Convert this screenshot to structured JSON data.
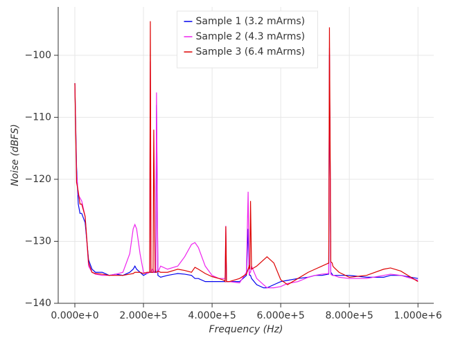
{
  "chart_data": {
    "type": "line",
    "x_label": "Frequency (Hz)",
    "y_label": "Noise (dBFS)",
    "xlim": [
      -48500,
      1046000
    ],
    "ylim": [
      -140,
      -92.2
    ],
    "xticks": [
      {
        "value": 0,
        "label": "0.000e+0"
      },
      {
        "value": 200000,
        "label": "2.000e+5"
      },
      {
        "value": 400000,
        "label": "4.000e+5"
      },
      {
        "value": 600000,
        "label": "6.000e+5"
      },
      {
        "value": 800000,
        "label": "8.000e+5"
      },
      {
        "value": 1000000,
        "label": "1.000e+6"
      }
    ],
    "yticks": [
      {
        "value": -140,
        "label": "−140"
      },
      {
        "value": -130,
        "label": "−130"
      },
      {
        "value": -120,
        "label": "−120"
      },
      {
        "value": -110,
        "label": "−110"
      },
      {
        "value": -100,
        "label": "−100"
      }
    ],
    "grid": true,
    "legend": "upper center",
    "x": [
      0,
      5000,
      10000,
      15000,
      20000,
      30000,
      40000,
      50000,
      60000,
      80000,
      100000,
      120000,
      140000,
      160000,
      170000,
      175000,
      180000,
      190000,
      200000,
      210000,
      218000,
      220000,
      222000,
      226000,
      228000,
      230000,
      234000,
      236000,
      238000,
      242000,
      250000,
      270000,
      300000,
      320000,
      340000,
      350000,
      360000,
      380000,
      400000,
      420000,
      435000,
      438000,
      440000,
      442000,
      450000,
      480000,
      500000,
      505000,
      508000,
      510000,
      512000,
      515000,
      530000,
      550000,
      560000,
      580000,
      600000,
      620000,
      650000,
      680000,
      700000,
      720000,
      740000,
      742000,
      746000,
      750000,
      752000,
      755000,
      770000,
      800000,
      850000,
      900000,
      920000,
      950000,
      1000000
    ],
    "series": [
      {
        "name": "Sample 1 (3.2 mArms)",
        "color": "#0000ee",
        "values": [
          -104.5,
          -118,
          -124,
          -125.5,
          -125.5,
          -127,
          -133,
          -134.5,
          -135,
          -135,
          -135.5,
          -135.3,
          -135.5,
          -135,
          -134.5,
          -134,
          -134.5,
          -135,
          -135.5,
          -135.2,
          -135,
          -135,
          -135,
          -135,
          -135,
          -135,
          -135,
          -135,
          -108,
          -135.5,
          -135.8,
          -135.5,
          -135.2,
          -135.3,
          -135.5,
          -136,
          -136,
          -136.5,
          -136.5,
          -136.5,
          -136.5,
          -136.5,
          -130,
          -136.5,
          -136.5,
          -136.5,
          -135.5,
          -128,
          -135,
          -135.5,
          -135.5,
          -136,
          -137,
          -137.5,
          -137.5,
          -137,
          -136.5,
          -136.3,
          -136,
          -135.8,
          -135.5,
          -135.5,
          -135.3,
          -100,
          -135,
          -135.3,
          -135.5,
          -135.5,
          -135.5,
          -135.5,
          -135.8,
          -135.8,
          -135.5,
          -135.5,
          -136
        ]
      },
      {
        "name": "Sample 2 (4.3 mArms)",
        "color": "#ee22ee",
        "values": [
          -104.5,
          -119,
          -122.5,
          -123,
          -123.5,
          -126,
          -134,
          -135,
          -135.3,
          -135.5,
          -135.5,
          -135.3,
          -135,
          -132,
          -128,
          -127.3,
          -128,
          -132,
          -135,
          -135.2,
          -135,
          -101,
          -135,
          -134.5,
          -134.5,
          -135,
          -134.8,
          -134.5,
          -106,
          -135,
          -134,
          -134.5,
          -134,
          -132.5,
          -130.5,
          -130.2,
          -131,
          -134,
          -135.5,
          -136,
          -136,
          -136,
          -127.5,
          -136.5,
          -136.5,
          -136.7,
          -135,
          -122,
          -135.5,
          -135,
          -135,
          -134,
          -136,
          -137,
          -137.5,
          -137.5,
          -137.3,
          -136.8,
          -136.5,
          -135.8,
          -135.5,
          -135.3,
          -135.2,
          -98.8,
          -135.3,
          -135.5,
          -135.5,
          -135.5,
          -135.8,
          -136,
          -136,
          -135.5,
          -135.3,
          -135.5,
          -136.3
        ]
      },
      {
        "name": "Sample 3 (6.4 mArms)",
        "color": "#dd0000",
        "values": [
          -104.5,
          -120.5,
          -122,
          -124,
          -124,
          -126,
          -133.5,
          -135,
          -135.2,
          -135.3,
          -135.5,
          -135.5,
          -135.5,
          -135.3,
          -135.2,
          -135,
          -135,
          -135,
          -135.2,
          -135,
          -135,
          -94.5,
          -135,
          -135,
          -135,
          -112,
          -135,
          -135,
          -135,
          -134.8,
          -135,
          -135,
          -134.5,
          -134.7,
          -135,
          -134.2,
          -134.5,
          -135.2,
          -135.7,
          -136,
          -136.3,
          -136.5,
          -127.6,
          -136.5,
          -136.5,
          -136,
          -135.3,
          -134.5,
          -134,
          -134.5,
          -123.5,
          -134.5,
          -134,
          -133,
          -132.5,
          -133.5,
          -136.2,
          -137,
          -136,
          -135,
          -134.5,
          -134,
          -133.5,
          -95.5,
          -133.3,
          -133.5,
          -134,
          -134.2,
          -135,
          -135.8,
          -135.5,
          -134.5,
          -134.3,
          -134.8,
          -136.5
        ]
      }
    ]
  }
}
